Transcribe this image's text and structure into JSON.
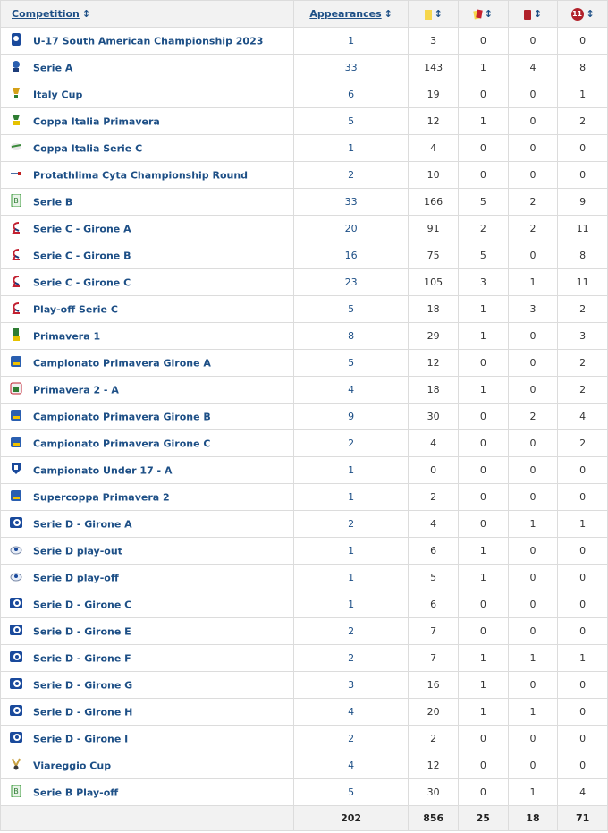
{
  "table": {
    "headers": {
      "competition": "Competition",
      "appearances": "Appearances",
      "sort_glyph": "↕",
      "penalty_badge": "11"
    },
    "rows": [
      {
        "name": "U-17 South American Championship 2023",
        "icon": "conmebol-icon",
        "apps": "1",
        "goals": "3",
        "yr": "0",
        "red": "0",
        "pen": "0"
      },
      {
        "name": "Serie A",
        "icon": "serie-a-icon",
        "apps": "33",
        "goals": "143",
        "yr": "1",
        "red": "4",
        "pen": "8"
      },
      {
        "name": "Italy Cup",
        "icon": "coppa-italia-icon",
        "apps": "6",
        "goals": "19",
        "yr": "0",
        "red": "0",
        "pen": "1"
      },
      {
        "name": "Coppa Italia Primavera",
        "icon": "coppa-italia-primavera-icon",
        "apps": "5",
        "goals": "12",
        "yr": "1",
        "red": "0",
        "pen": "2"
      },
      {
        "name": "Coppa Italia Serie C",
        "icon": "coppa-italia-serie-c-icon",
        "apps": "1",
        "goals": "4",
        "yr": "0",
        "red": "0",
        "pen": "0"
      },
      {
        "name": "Protathlima Cyta Championship Round",
        "icon": "cyta-league-icon",
        "apps": "2",
        "goals": "10",
        "yr": "0",
        "red": "0",
        "pen": "0"
      },
      {
        "name": "Serie B",
        "icon": "serie-b-icon",
        "apps": "33",
        "goals": "166",
        "yr": "5",
        "red": "2",
        "pen": "9"
      },
      {
        "name": "Serie C - Girone A",
        "icon": "serie-c-icon",
        "apps": "20",
        "goals": "91",
        "yr": "2",
        "red": "2",
        "pen": "11"
      },
      {
        "name": "Serie C - Girone B",
        "icon": "serie-c-icon",
        "apps": "16",
        "goals": "75",
        "yr": "5",
        "red": "0",
        "pen": "8"
      },
      {
        "name": "Serie C - Girone C",
        "icon": "serie-c-icon",
        "apps": "23",
        "goals": "105",
        "yr": "3",
        "red": "1",
        "pen": "11"
      },
      {
        "name": "Play-off Serie C",
        "icon": "serie-c-icon",
        "apps": "5",
        "goals": "18",
        "yr": "1",
        "red": "3",
        "pen": "2"
      },
      {
        "name": "Primavera 1",
        "icon": "primavera-1-icon",
        "apps": "8",
        "goals": "29",
        "yr": "1",
        "red": "0",
        "pen": "3"
      },
      {
        "name": "Campionato Primavera Girone A",
        "icon": "campionato-primavera-icon",
        "apps": "5",
        "goals": "12",
        "yr": "0",
        "red": "0",
        "pen": "2"
      },
      {
        "name": "Primavera 2 - A",
        "icon": "primavera-2-icon",
        "apps": "4",
        "goals": "18",
        "yr": "1",
        "red": "0",
        "pen": "2"
      },
      {
        "name": "Campionato Primavera Girone B",
        "icon": "campionato-primavera-icon",
        "apps": "9",
        "goals": "30",
        "yr": "0",
        "red": "2",
        "pen": "4"
      },
      {
        "name": "Campionato Primavera Girone C",
        "icon": "campionato-primavera-icon",
        "apps": "2",
        "goals": "4",
        "yr": "0",
        "red": "0",
        "pen": "2"
      },
      {
        "name": "Campionato Under 17 - A",
        "icon": "figc-icon",
        "apps": "1",
        "goals": "0",
        "yr": "0",
        "red": "0",
        "pen": "0"
      },
      {
        "name": "Supercoppa Primavera 2",
        "icon": "campionato-primavera-icon",
        "apps": "1",
        "goals": "2",
        "yr": "0",
        "red": "0",
        "pen": "0"
      },
      {
        "name": "Serie D - Girone A",
        "icon": "serie-d-icon",
        "apps": "2",
        "goals": "4",
        "yr": "0",
        "red": "1",
        "pen": "1"
      },
      {
        "name": "Serie D play-out",
        "icon": "serie-d-playout-icon",
        "apps": "1",
        "goals": "6",
        "yr": "1",
        "red": "0",
        "pen": "0"
      },
      {
        "name": "Serie D play-off",
        "icon": "serie-d-playoff-icon",
        "apps": "1",
        "goals": "5",
        "yr": "1",
        "red": "0",
        "pen": "0"
      },
      {
        "name": "Serie D - Girone C",
        "icon": "serie-d-icon",
        "apps": "1",
        "goals": "6",
        "yr": "0",
        "red": "0",
        "pen": "0"
      },
      {
        "name": "Serie D - Girone E",
        "icon": "serie-d-icon",
        "apps": "2",
        "goals": "7",
        "yr": "0",
        "red": "0",
        "pen": "0"
      },
      {
        "name": "Serie D - Girone F",
        "icon": "serie-d-icon",
        "apps": "2",
        "goals": "7",
        "yr": "1",
        "red": "1",
        "pen": "1"
      },
      {
        "name": "Serie D - Girone G",
        "icon": "serie-d-icon",
        "apps": "3",
        "goals": "16",
        "yr": "1",
        "red": "0",
        "pen": "0"
      },
      {
        "name": "Serie D - Girone H",
        "icon": "serie-d-icon",
        "apps": "4",
        "goals": "20",
        "yr": "1",
        "red": "1",
        "pen": "0"
      },
      {
        "name": "Serie D - Girone I",
        "icon": "serie-d-icon",
        "apps": "2",
        "goals": "2",
        "yr": "0",
        "red": "0",
        "pen": "0"
      },
      {
        "name": "Viareggio Cup",
        "icon": "viareggio-cup-icon",
        "apps": "4",
        "goals": "12",
        "yr": "0",
        "red": "0",
        "pen": "0"
      },
      {
        "name": "Serie B Play-off",
        "icon": "serie-b-icon",
        "apps": "5",
        "goals": "30",
        "yr": "0",
        "red": "1",
        "pen": "4"
      }
    ],
    "totals": {
      "apps": "202",
      "goals": "856",
      "yr": "25",
      "red": "18",
      "pen": "71"
    }
  },
  "colors": {
    "link_blue": "#1d4f86",
    "yellow_card": "#f6d64c",
    "red_card": "#b1212a"
  }
}
